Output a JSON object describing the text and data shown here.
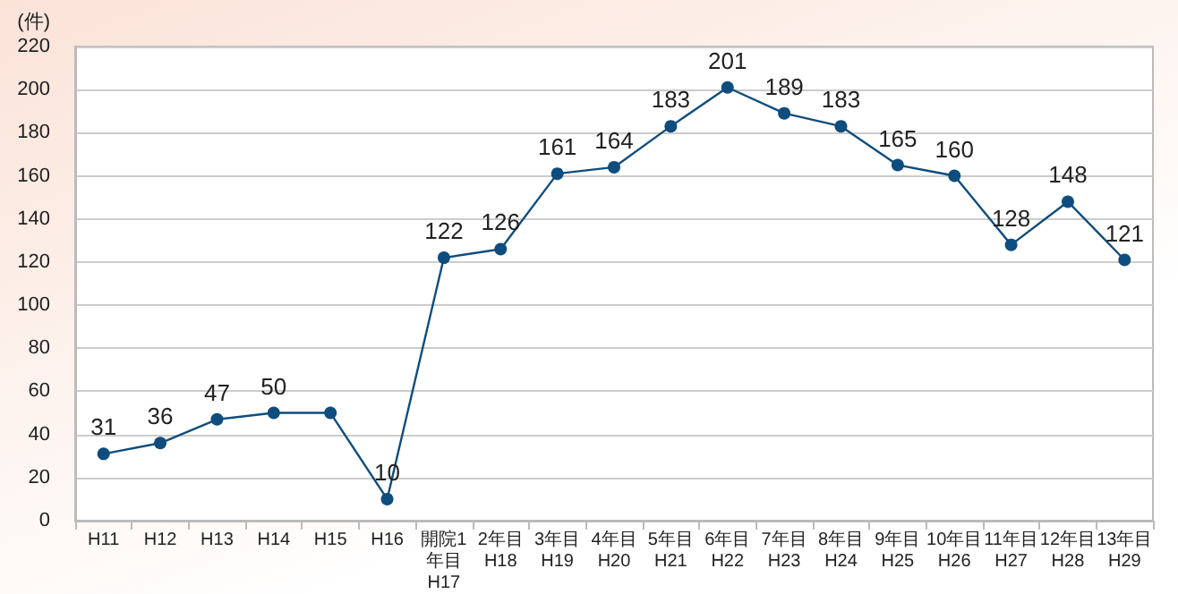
{
  "chart_data": {
    "type": "line",
    "ylabel": "(件)",
    "categories": [
      "H11",
      "H12",
      "H13",
      "H14",
      "H15",
      "H16",
      "開院1年目\nH17",
      "2年目\nH18",
      "3年目\nH19",
      "4年目\nH20",
      "5年目\nH21",
      "6年目\nH22",
      "7年目\nH23",
      "8年目\nH24",
      "9年目\nH25",
      "10年目\nH26",
      "11年目\nH27",
      "12年目\nH28",
      "13年目\nH29"
    ],
    "series": [
      {
        "color": "#0e4d7e",
        "values": [
          31,
          36,
          47,
          50,
          50,
          10,
          122,
          126,
          161,
          164,
          183,
          201,
          189,
          183,
          165,
          160,
          128,
          148,
          121
        ],
        "value_labels": [
          "31",
          "36",
          "47",
          "50",
          null,
          "10",
          "122",
          "126",
          "161",
          "164",
          "183",
          "201",
          "189",
          "183",
          "165",
          "160",
          "128",
          "148",
          "121"
        ]
      }
    ],
    "ylim": [
      0,
      220
    ],
    "yticks": [
      0,
      20,
      40,
      60,
      80,
      100,
      120,
      140,
      160,
      180,
      200,
      220
    ],
    "grid": "y",
    "marker": "circle",
    "line_style": "solid"
  }
}
